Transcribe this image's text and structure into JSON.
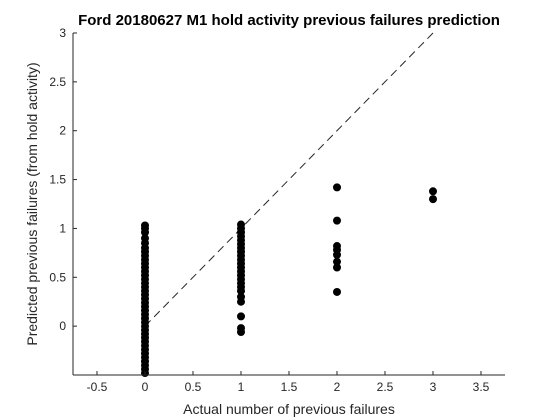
{
  "chart_data": {
    "type": "scatter",
    "title": "Ford 20180627 M1 hold activity previous failures prediction",
    "xlabel": "Actual number of previous failures",
    "ylabel": "Predicted previous failures (from hold activity)",
    "xlim": [
      -0.75,
      3.75
    ],
    "ylim": [
      -0.5,
      3
    ],
    "xticks": [
      "-0.5",
      "0",
      "0.5",
      "1",
      "1.5",
      "2",
      "2.5",
      "3",
      "3.5"
    ],
    "yticks": [
      "0",
      "0.5",
      "1",
      "1.5",
      "2",
      "2.5",
      "3"
    ],
    "grid": false,
    "reference_line": {
      "style": "dashed",
      "x": [
        0,
        3
      ],
      "y": [
        0,
        3
      ]
    },
    "series": [
      {
        "marker": "filled-circle",
        "color": "#000000",
        "points": [
          [
            0,
            1.03
          ],
          [
            0,
            1.0
          ],
          [
            0,
            0.96
          ],
          [
            0,
            0.9
          ],
          [
            0,
            0.85
          ],
          [
            0,
            0.8
          ],
          [
            0,
            0.76
          ],
          [
            0,
            0.72
          ],
          [
            0,
            0.68
          ],
          [
            0,
            0.64
          ],
          [
            0,
            0.6
          ],
          [
            0,
            0.56
          ],
          [
            0,
            0.52
          ],
          [
            0,
            0.48
          ],
          [
            0,
            0.44
          ],
          [
            0,
            0.4
          ],
          [
            0,
            0.36
          ],
          [
            0,
            0.32
          ],
          [
            0,
            0.28
          ],
          [
            0,
            0.24
          ],
          [
            0,
            0.2
          ],
          [
            0,
            0.16
          ],
          [
            0,
            0.12
          ],
          [
            0,
            0.08
          ],
          [
            0,
            0.04
          ],
          [
            0,
            0.0
          ],
          [
            0,
            -0.04
          ],
          [
            0,
            -0.08
          ],
          [
            0,
            -0.12
          ],
          [
            0,
            -0.16
          ],
          [
            0,
            -0.2
          ],
          [
            0,
            -0.24
          ],
          [
            0,
            -0.28
          ],
          [
            0,
            -0.32
          ],
          [
            0,
            -0.36
          ],
          [
            0,
            -0.4
          ],
          [
            0,
            -0.44
          ],
          [
            0,
            -0.48
          ],
          [
            1,
            1.04
          ],
          [
            1,
            1.0
          ],
          [
            1,
            0.96
          ],
          [
            1,
            0.92
          ],
          [
            1,
            0.88
          ],
          [
            1,
            0.84
          ],
          [
            1,
            0.8
          ],
          [
            1,
            0.76
          ],
          [
            1,
            0.72
          ],
          [
            1,
            0.68
          ],
          [
            1,
            0.64
          ],
          [
            1,
            0.6
          ],
          [
            1,
            0.56
          ],
          [
            1,
            0.52
          ],
          [
            1,
            0.48
          ],
          [
            1,
            0.44
          ],
          [
            1,
            0.4
          ],
          [
            1,
            0.36
          ],
          [
            1,
            0.3
          ],
          [
            1,
            0.25
          ],
          [
            1,
            0.1
          ],
          [
            1,
            -0.02
          ],
          [
            1,
            -0.06
          ],
          [
            2,
            1.42
          ],
          [
            2,
            1.08
          ],
          [
            2,
            0.82
          ],
          [
            2,
            0.78
          ],
          [
            2,
            0.73
          ],
          [
            2,
            0.66
          ],
          [
            2,
            0.6
          ],
          [
            2,
            0.35
          ],
          [
            3,
            1.38
          ],
          [
            3,
            1.3
          ]
        ]
      }
    ]
  }
}
